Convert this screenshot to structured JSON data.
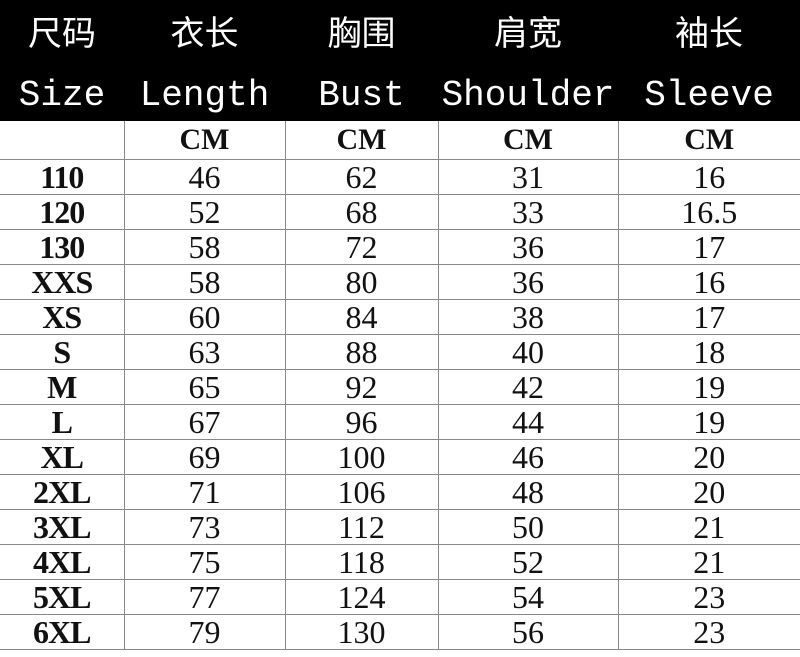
{
  "columns": [
    {
      "zh": "尺码",
      "en": "Size",
      "unit": ""
    },
    {
      "zh": "衣长",
      "en": "Length",
      "unit": "CM"
    },
    {
      "zh": "胸围",
      "en": "Bust",
      "unit": "CM"
    },
    {
      "zh": "肩宽",
      "en": "Shoulder",
      "unit": "CM"
    },
    {
      "zh": "袖长",
      "en": "Sleeve",
      "unit": "CM"
    }
  ],
  "rows": [
    [
      "110",
      "46",
      "62",
      "31",
      "16"
    ],
    [
      "120",
      "52",
      "68",
      "33",
      "16.5"
    ],
    [
      "130",
      "58",
      "72",
      "36",
      "17"
    ],
    [
      "XXS",
      "58",
      "80",
      "36",
      "16"
    ],
    [
      "XS",
      "60",
      "84",
      "38",
      "17"
    ],
    [
      "S",
      "63",
      "88",
      "40",
      "18"
    ],
    [
      "M",
      "65",
      "92",
      "42",
      "19"
    ],
    [
      "L",
      "67",
      "96",
      "44",
      "19"
    ],
    [
      "XL",
      "69",
      "100",
      "46",
      "20"
    ],
    [
      "2XL",
      "71",
      "106",
      "48",
      "20"
    ],
    [
      "3XL",
      "73",
      "112",
      "50",
      "21"
    ],
    [
      "4XL",
      "75",
      "118",
      "52",
      "21"
    ],
    [
      "5XL",
      "77",
      "124",
      "54",
      "23"
    ],
    [
      "6XL",
      "79",
      "130",
      "56",
      "23"
    ]
  ]
}
